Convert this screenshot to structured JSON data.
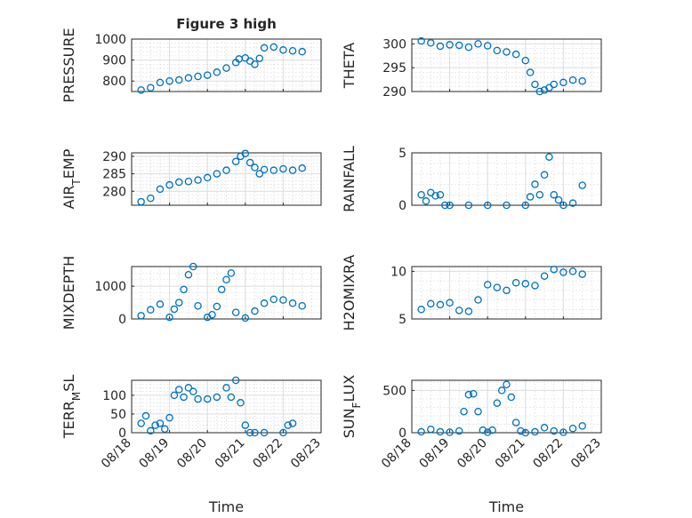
{
  "style": {
    "marker_color": "#0072BD"
  },
  "chart_data": [
    {
      "type": "scatter",
      "title": "Figure 3 high",
      "ylabel": "PRESSURE",
      "xlabel": "",
      "xlim": [
        "08/18",
        "08/23"
      ],
      "ylim": [
        750,
        1000
      ],
      "yticks": [
        800,
        900,
        1000
      ],
      "ytick_labels": [
        "800",
        "900",
        "1000"
      ],
      "x_tick_labels": [],
      "x": [
        "08/18 06:00",
        "08/18 12:00",
        "08/18 18:00",
        "08/19 00:00",
        "08/19 06:00",
        "08/19 12:00",
        "08/19 18:00",
        "08/20 00:00",
        "08/20 06:00",
        "08/20 12:00",
        "08/20 18:00",
        "08/20 20:00",
        "08/21 00:00",
        "08/21 03:00",
        "08/21 06:00",
        "08/21 09:00",
        "08/21 12:00",
        "08/21 18:00",
        "08/22 00:00",
        "08/22 06:00",
        "08/22 12:00"
      ],
      "y": [
        757,
        768,
        793,
        800,
        805,
        815,
        822,
        828,
        842,
        862,
        888,
        905,
        910,
        895,
        880,
        908,
        958,
        962,
        948,
        944,
        940
      ]
    },
    {
      "type": "scatter",
      "title": "",
      "ylabel": "THETA",
      "xlabel": "",
      "xlim": [
        "08/18",
        "08/23"
      ],
      "ylim": [
        290,
        301
      ],
      "yticks": [
        290,
        295,
        300
      ],
      "ytick_labels": [
        "290",
        "295",
        "300"
      ],
      "x_tick_labels": [],
      "x": [
        "08/18 06:00",
        "08/18 12:00",
        "08/18 18:00",
        "08/19 00:00",
        "08/19 06:00",
        "08/19 12:00",
        "08/19 18:00",
        "08/20 00:00",
        "08/20 06:00",
        "08/20 12:00",
        "08/20 18:00",
        "08/21 00:00",
        "08/21 03:00",
        "08/21 06:00",
        "08/21 09:00",
        "08/21 12:00",
        "08/21 15:00",
        "08/21 18:00",
        "08/22 00:00",
        "08/22 06:00",
        "08/22 12:00"
      ],
      "y": [
        300.6,
        300.2,
        299.5,
        299.8,
        299.7,
        299.3,
        300.0,
        299.6,
        298.6,
        298.3,
        297.8,
        296.5,
        294.0,
        291.5,
        290.0,
        290.3,
        290.8,
        291.5,
        291.9,
        292.4,
        292.2
      ]
    },
    {
      "type": "scatter",
      "title": "",
      "ylabel": "AIR_TEMP",
      "xlabel": "",
      "xlim": [
        "08/18",
        "08/23"
      ],
      "ylim": [
        276,
        291
      ],
      "yticks": [
        280,
        285,
        290
      ],
      "ytick_labels": [
        "280",
        "285",
        "290"
      ],
      "x_tick_labels": [],
      "x": [
        "08/18 06:00",
        "08/18 12:00",
        "08/18 18:00",
        "08/19 00:00",
        "08/19 06:00",
        "08/19 12:00",
        "08/19 18:00",
        "08/20 00:00",
        "08/20 06:00",
        "08/20 12:00",
        "08/20 18:00",
        "08/20 21:00",
        "08/21 00:00",
        "08/21 03:00",
        "08/21 06:00",
        "08/21 09:00",
        "08/21 12:00",
        "08/21 18:00",
        "08/22 00:00",
        "08/22 06:00",
        "08/22 12:00"
      ],
      "y": [
        277.0,
        278.0,
        280.6,
        281.8,
        282.6,
        282.8,
        283.2,
        283.9,
        285.0,
        286.0,
        288.5,
        290.0,
        290.8,
        288.2,
        286.8,
        285.0,
        286.2,
        286.0,
        286.4,
        286.0,
        286.6
      ]
    },
    {
      "type": "scatter",
      "title": "",
      "ylabel": "RAINFALL",
      "xlabel": "",
      "xlim": [
        "08/18",
        "08/23"
      ],
      "ylim": [
        0,
        5
      ],
      "yticks": [
        0,
        5
      ],
      "ytick_labels": [
        "0",
        "5"
      ],
      "x_tick_labels": [],
      "x": [
        "08/18 06:00",
        "08/18 09:00",
        "08/18 12:00",
        "08/18 15:00",
        "08/18 18:00",
        "08/18 21:00",
        "08/19 00:00",
        "08/19 12:00",
        "08/20 00:00",
        "08/20 12:00",
        "08/21 00:00",
        "08/21 03:00",
        "08/21 06:00",
        "08/21 09:00",
        "08/21 12:00",
        "08/21 15:00",
        "08/21 18:00",
        "08/21 21:00",
        "08/22 00:00",
        "08/22 06:00",
        "08/22 12:00"
      ],
      "y": [
        1.0,
        0.4,
        1.2,
        0.9,
        1.0,
        0.0,
        0.0,
        0.0,
        0.0,
        0.0,
        0.0,
        0.8,
        2.0,
        1.0,
        2.9,
        4.6,
        1.0,
        0.5,
        0.0,
        0.2,
        1.9
      ]
    },
    {
      "type": "scatter",
      "title": "",
      "ylabel": "MIXDEPTH",
      "xlabel": "",
      "xlim": [
        "08/18",
        "08/23"
      ],
      "ylim": [
        0,
        1600
      ],
      "yticks": [
        0,
        1000
      ],
      "ytick_labels": [
        "0",
        "1000"
      ],
      "x_tick_labels": [],
      "x": [
        "08/18 06:00",
        "08/18 12:00",
        "08/18 18:00",
        "08/19 00:00",
        "08/19 03:00",
        "08/19 06:00",
        "08/19 09:00",
        "08/19 12:00",
        "08/19 15:00",
        "08/19 18:00",
        "08/20 00:00",
        "08/20 03:00",
        "08/20 06:00",
        "08/20 09:00",
        "08/20 12:00",
        "08/20 15:00",
        "08/20 18:00",
        "08/21 00:00",
        "08/21 06:00",
        "08/21 12:00",
        "08/21 18:00",
        "08/22 00:00",
        "08/22 06:00",
        "08/22 12:00"
      ],
      "y": [
        100,
        280,
        450,
        50,
        300,
        500,
        900,
        1350,
        1600,
        400,
        50,
        130,
        380,
        900,
        1200,
        1400,
        200,
        30,
        240,
        480,
        600,
        580,
        480,
        400
      ]
    },
    {
      "type": "scatter",
      "title": "",
      "ylabel": "H2OMIXRA",
      "xlabel": "",
      "xlim": [
        "08/18",
        "08/23"
      ],
      "ylim": [
        5,
        10.5
      ],
      "yticks": [
        5,
        10
      ],
      "ytick_labels": [
        "5",
        "10"
      ],
      "x_tick_labels": [],
      "x": [
        "08/18 06:00",
        "08/18 12:00",
        "08/18 18:00",
        "08/19 00:00",
        "08/19 06:00",
        "08/19 12:00",
        "08/19 18:00",
        "08/20 00:00",
        "08/20 06:00",
        "08/20 12:00",
        "08/20 18:00",
        "08/21 00:00",
        "08/21 06:00",
        "08/21 12:00",
        "08/21 18:00",
        "08/22 00:00",
        "08/22 06:00",
        "08/22 12:00"
      ],
      "y": [
        6.0,
        6.6,
        6.5,
        6.7,
        5.9,
        5.8,
        7.0,
        8.6,
        8.3,
        8.0,
        8.8,
        8.7,
        8.5,
        9.5,
        10.2,
        9.9,
        10.0,
        9.7
      ]
    },
    {
      "type": "scatter",
      "title": "",
      "ylabel": "TERR_MSL",
      "xlabel": "Time",
      "xlim": [
        "08/18",
        "08/23"
      ],
      "ylim": [
        0,
        140
      ],
      "yticks": [
        0,
        50,
        100
      ],
      "ytick_labels": [
        "0",
        "50",
        "100"
      ],
      "x_tick_labels": [
        "08/18",
        "08/19",
        "08/20",
        "08/21",
        "08/22",
        "08/23"
      ],
      "x": [
        "08/18 06:00",
        "08/18 09:00",
        "08/18 12:00",
        "08/18 15:00",
        "08/18 18:00",
        "08/18 21:00",
        "08/19 00:00",
        "08/19 03:00",
        "08/19 06:00",
        "08/19 09:00",
        "08/19 12:00",
        "08/19 15:00",
        "08/19 18:00",
        "08/20 00:00",
        "08/20 06:00",
        "08/20 12:00",
        "08/20 15:00",
        "08/20 18:00",
        "08/20 21:00",
        "08/21 00:00",
        "08/21 03:00",
        "08/21 06:00",
        "08/21 12:00",
        "08/22 00:00",
        "08/22 03:00",
        "08/22 06:00"
      ],
      "y": [
        25,
        45,
        5,
        20,
        25,
        10,
        40,
        100,
        115,
        95,
        120,
        110,
        90,
        90,
        95,
        120,
        95,
        140,
        80,
        20,
        0,
        0,
        0,
        0,
        20,
        25
      ]
    },
    {
      "type": "scatter",
      "title": "",
      "ylabel": "SUN_FLUX",
      "xlabel": "Time",
      "xlim": [
        "08/18",
        "08/23"
      ],
      "ylim": [
        0,
        620
      ],
      "yticks": [
        0,
        500
      ],
      "ytick_labels": [
        "0",
        "500"
      ],
      "x_tick_labels": [
        "08/18",
        "08/19",
        "08/20",
        "08/21",
        "08/22",
        "08/23"
      ],
      "x": [
        "08/18 06:00",
        "08/18 12:00",
        "08/18 18:00",
        "08/19 00:00",
        "08/19 06:00",
        "08/19 09:00",
        "08/19 12:00",
        "08/19 15:00",
        "08/19 18:00",
        "08/19 21:00",
        "08/20 00:00",
        "08/20 03:00",
        "08/20 06:00",
        "08/20 09:00",
        "08/20 12:00",
        "08/20 15:00",
        "08/20 18:00",
        "08/20 21:00",
        "08/21 00:00",
        "08/21 06:00",
        "08/21 12:00",
        "08/21 18:00",
        "08/22 00:00",
        "08/22 06:00",
        "08/22 12:00"
      ],
      "y": [
        10,
        40,
        10,
        5,
        20,
        250,
        450,
        460,
        250,
        30,
        5,
        30,
        350,
        500,
        570,
        420,
        120,
        20,
        0,
        10,
        60,
        20,
        5,
        50,
        80
      ]
    }
  ]
}
